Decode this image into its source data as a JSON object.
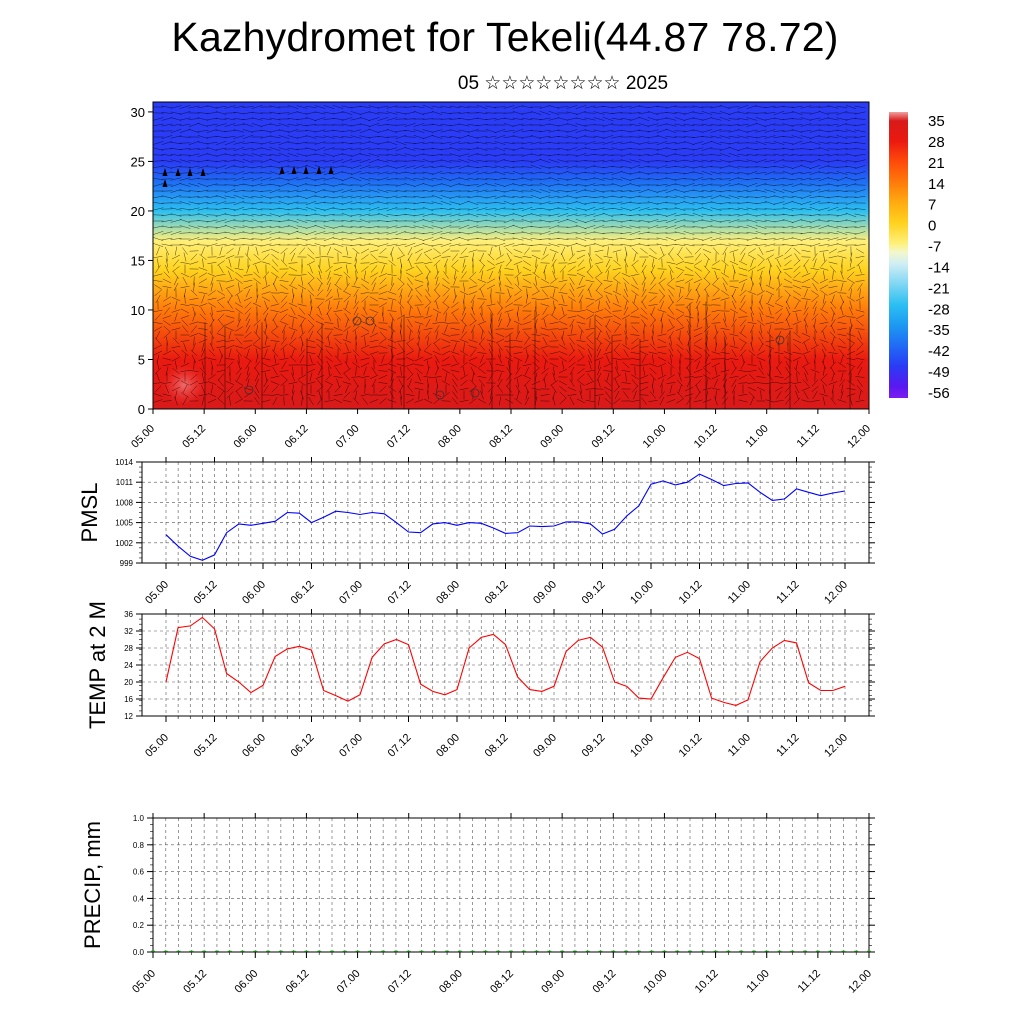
{
  "title": "Kazhydromet for Tekeli(44.87 78.72)",
  "subtitle": "05 ☆☆☆☆☆☆☆☆ 2025",
  "chart_data": [
    {
      "type": "heatmap",
      "name": "height-time section of temperature with wind barbs",
      "x_ticks": [
        "05.00",
        "05.12",
        "06.00",
        "06.12",
        "07.00",
        "07.12",
        "08.00",
        "08.12",
        "09.00",
        "09.12",
        "10.00",
        "10.12",
        "11.00",
        "11.12",
        "12.00"
      ],
      "y_ticks": [
        0,
        5,
        10,
        15,
        20,
        25,
        30
      ],
      "ylim": [
        0,
        31
      ],
      "colorbar_labels": [
        35,
        28,
        21,
        14,
        7,
        0,
        -7,
        -14,
        -21,
        -28,
        -35,
        -42,
        -49,
        -56
      ],
      "colorbar_range": [
        -60,
        38
      ],
      "temperature_profile_by_level": [
        {
          "level": 0,
          "value": 33
        },
        {
          "level": 5,
          "value": 25
        },
        {
          "level": 10,
          "value": 14
        },
        {
          "level": 14,
          "value": 0
        },
        {
          "level": 17,
          "value": -8
        },
        {
          "level": 20,
          "value": -28
        },
        {
          "level": 23,
          "value": -45
        },
        {
          "level": 25,
          "value": -55
        },
        {
          "level": 31,
          "value": -50
        }
      ]
    },
    {
      "type": "line",
      "ylabel": "PMSL",
      "ylim": [
        999,
        1014
      ],
      "y_ticks": [
        999,
        1002,
        1005,
        1008,
        1011,
        1014
      ],
      "x_ticks": [
        "05.00",
        "05.12",
        "06.00",
        "06.12",
        "07.00",
        "07.12",
        "08.00",
        "08.12",
        "09.00",
        "09.12",
        "10.00",
        "10.12",
        "11.00",
        "11.12",
        "12.00"
      ],
      "color": "#0000ff",
      "x": [
        0,
        3,
        6,
        9,
        12,
        15,
        18,
        21,
        24,
        27,
        30,
        33,
        36,
        39,
        42,
        45,
        48,
        51,
        54,
        57,
        60,
        63,
        66,
        69,
        72,
        75,
        78,
        81,
        84,
        87,
        90,
        93,
        96,
        99,
        102,
        105,
        108,
        111,
        114,
        117,
        120,
        123,
        126,
        129,
        132,
        135,
        138,
        141,
        144,
        147,
        150,
        153,
        156,
        159,
        162,
        165,
        168
      ],
      "values": [
        1003.2,
        1001.5,
        1000.0,
        999.4,
        1000.2,
        1003.5,
        1004.8,
        1004.6,
        1004.9,
        1005.2,
        1006.5,
        1006.4,
        1005.0,
        1005.8,
        1006.7,
        1006.5,
        1006.2,
        1006.5,
        1006.3,
        1005.0,
        1003.6,
        1003.5,
        1004.8,
        1005.0,
        1004.6,
        1005.0,
        1004.9,
        1004.2,
        1003.4,
        1003.5,
        1004.5,
        1004.4,
        1004.5,
        1005.1,
        1005.1,
        1004.8,
        1003.3,
        1004.0,
        1006.0,
        1007.5,
        1010.7,
        1011.2,
        1010.6,
        1011.0,
        1012.2,
        1011.4,
        1010.5,
        1010.8,
        1010.9,
        1009.5,
        1008.3,
        1008.5,
        1010.0,
        1009.5,
        1009.0,
        1009.4,
        1009.7
      ]
    },
    {
      "type": "line",
      "ylabel": "TEMP at 2 M",
      "ylim": [
        12,
        36
      ],
      "y_ticks": [
        12,
        16,
        20,
        24,
        28,
        32,
        36
      ],
      "x_ticks": [
        "05.00",
        "05.12",
        "06.00",
        "06.12",
        "07.00",
        "07.12",
        "08.00",
        "08.12",
        "09.00",
        "09.12",
        "10.00",
        "10.12",
        "11.00",
        "11.12",
        "12.00"
      ],
      "color": "#ff0000",
      "x": [
        0,
        3,
        6,
        9,
        12,
        15,
        18,
        21,
        24,
        27,
        30,
        33,
        36,
        39,
        42,
        45,
        48,
        51,
        54,
        57,
        60,
        63,
        66,
        69,
        72,
        75,
        78,
        81,
        84,
        87,
        90,
        93,
        96,
        99,
        102,
        105,
        108,
        111,
        114,
        117,
        120,
        123,
        126,
        129,
        132,
        135,
        138,
        141,
        144,
        147,
        150,
        153,
        156,
        159,
        162,
        165,
        168
      ],
      "values": [
        20.0,
        32.8,
        33.2,
        35.2,
        32.5,
        22.0,
        20.0,
        17.5,
        19.2,
        26.0,
        27.8,
        28.4,
        27.5,
        18.0,
        16.8,
        15.5,
        17.0,
        25.8,
        29.0,
        30.0,
        28.8,
        19.5,
        17.8,
        17.0,
        18.2,
        28.0,
        30.5,
        31.2,
        28.8,
        21.2,
        18.2,
        17.8,
        19.0,
        27.2,
        29.8,
        30.5,
        28.2,
        20.0,
        19.0,
        16.2,
        16.0,
        21.0,
        25.8,
        27.0,
        25.5,
        16.2,
        15.2,
        14.5,
        15.8,
        24.8,
        28.0,
        29.8,
        29.2,
        19.8,
        18.0,
        18.0,
        19.0
      ]
    },
    {
      "type": "bar",
      "ylabel": "PRECIP, mm",
      "ylim": [
        0,
        1.0
      ],
      "y_ticks": [
        "0.0",
        "0.2",
        "0.4",
        "0.6",
        "0.8",
        "1.0"
      ],
      "x_ticks": [
        "05.00",
        "05.12",
        "06.00",
        "06.12",
        "07.00",
        "07.12",
        "08.00",
        "08.12",
        "09.00",
        "09.12",
        "10.00",
        "10.12",
        "11.00",
        "11.12",
        "12.00"
      ],
      "color": "#008000",
      "values": [
        0,
        0,
        0,
        0,
        0,
        0,
        0,
        0,
        0,
        0,
        0,
        0,
        0,
        0,
        0,
        0,
        0,
        0,
        0,
        0,
        0,
        0,
        0,
        0,
        0,
        0,
        0,
        0,
        0,
        0,
        0,
        0,
        0,
        0,
        0,
        0,
        0,
        0,
        0,
        0,
        0,
        0,
        0,
        0,
        0,
        0,
        0,
        0,
        0,
        0,
        0,
        0,
        0,
        0,
        0,
        0,
        0
      ]
    }
  ]
}
